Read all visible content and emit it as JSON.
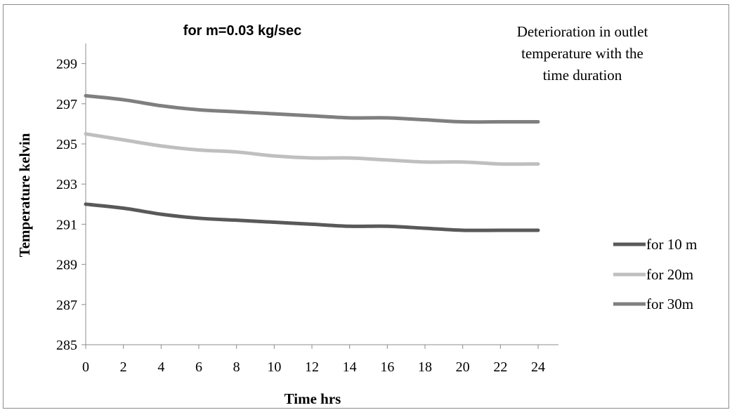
{
  "chart_data": {
    "type": "line",
    "title": "for m=0.03 kg/sec",
    "annotation": [
      "Deterioration in outlet",
      "temperature with the",
      "time duration"
    ],
    "xlabel": "Time hrs",
    "ylabel": "Temperature kelvin",
    "x": [
      0,
      2,
      4,
      6,
      8,
      10,
      12,
      14,
      16,
      18,
      20,
      22,
      24
    ],
    "xticks": [
      "0",
      "2",
      "4",
      "6",
      "8",
      "10",
      "12",
      "14",
      "16",
      "18",
      "20",
      "22",
      "24"
    ],
    "yticks": [
      "285",
      "287",
      "289",
      "291",
      "293",
      "295",
      "297",
      "299"
    ],
    "ylim": [
      285,
      300
    ],
    "xlim": [
      0,
      24
    ],
    "grid": false,
    "legend_position": "right",
    "series": [
      {
        "name": "for 10 m",
        "color": "#595959",
        "values": [
          292.0,
          291.8,
          291.5,
          291.3,
          291.2,
          291.1,
          291.0,
          290.9,
          290.9,
          290.8,
          290.7,
          290.7,
          290.7
        ]
      },
      {
        "name": "for 20m",
        "color": "#bfbfbf",
        "values": [
          295.5,
          295.2,
          294.9,
          294.7,
          294.6,
          294.4,
          294.3,
          294.3,
          294.2,
          294.1,
          294.1,
          294.0,
          294.0
        ]
      },
      {
        "name": "for 30m",
        "color": "#7f7f7f",
        "values": [
          297.4,
          297.2,
          296.9,
          296.7,
          296.6,
          296.5,
          296.4,
          296.3,
          296.3,
          296.2,
          296.1,
          296.1,
          296.1
        ]
      }
    ]
  }
}
